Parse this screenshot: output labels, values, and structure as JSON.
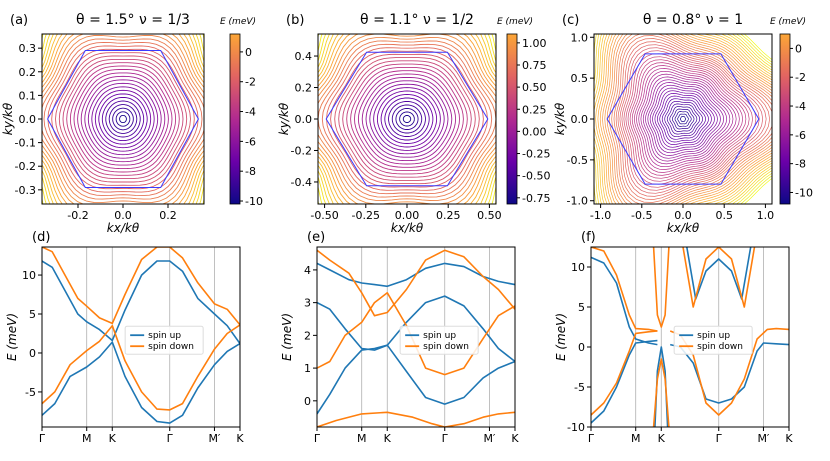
{
  "colors": {
    "spin_up": "#1f77b4",
    "spin_down": "#ff7f0e",
    "hexagon": "#3b3bff",
    "grid": "#b0b0b0",
    "cmap": [
      "#0d0887",
      "#6a00a8",
      "#b12a90",
      "#e16462",
      "#fca636",
      "#f0f921"
    ]
  },
  "chart_data": [
    {
      "id": "a",
      "type": "contour",
      "panel_label": "(a)",
      "title": "θ = 1.5° ν = 1/3",
      "xlabel": "kx/kθ",
      "ylabel": "ky/kθ",
      "xlim": [
        -0.36,
        0.36
      ],
      "ylim": [
        -0.36,
        0.36
      ],
      "xticks": [
        "-0.2",
        "0.0",
        "0.2"
      ],
      "xtick_values": [
        -0.2,
        0.0,
        0.2
      ],
      "yticks": [
        "-0.3",
        "-0.2",
        "-0.1",
        "0.0",
        "0.1",
        "0.2",
        "0.3"
      ],
      "ytick_values": [
        -0.3,
        -0.2,
        -0.1,
        0.0,
        0.1,
        0.2,
        0.3
      ],
      "hexagon_radius": 0.335,
      "colorbar": {
        "label": "E (meV)",
        "range": [
          -10.2,
          1.2
        ],
        "ticks": [
          "0",
          "-2",
          "-4",
          "-6",
          "-8",
          "-10"
        ],
        "tick_values": [
          0,
          -2,
          -4,
          -6,
          -8,
          -10
        ]
      }
    },
    {
      "id": "b",
      "type": "contour",
      "panel_label": "(b)",
      "title": "θ = 1.1° ν = 1/2",
      "xlabel": "kx/kθ",
      "ylabel": "ky/kθ",
      "xlim": [
        -0.54,
        0.54
      ],
      "ylim": [
        -0.54,
        0.54
      ],
      "xticks": [
        "-0.50",
        "-0.25",
        "0.00",
        "0.25",
        "0.50"
      ],
      "xtick_values": [
        -0.5,
        -0.25,
        0.0,
        0.25,
        0.5
      ],
      "yticks": [
        "-0.4",
        "-0.2",
        "0.0",
        "0.2",
        "0.4"
      ],
      "ytick_values": [
        -0.4,
        -0.2,
        0.0,
        0.2,
        0.4
      ],
      "hexagon_radius": 0.49,
      "colorbar": {
        "label": "E (meV)",
        "range": [
          -0.82,
          1.1
        ],
        "ticks": [
          "1.00",
          "0.75",
          "0.50",
          "0.25",
          "0.00",
          "-0.25",
          "-0.50",
          "-0.75"
        ],
        "tick_values": [
          1.0,
          0.75,
          0.5,
          0.25,
          0.0,
          -0.25,
          -0.5,
          -0.75
        ]
      }
    },
    {
      "id": "c",
      "type": "contour",
      "panel_label": "(c)",
      "title": "θ = 0.8° ν = 1",
      "xlabel": "kx/kθ",
      "ylabel": "ky/kθ",
      "xlim": [
        -1.08,
        1.08
      ],
      "ylim": [
        -1.04,
        1.04
      ],
      "xticks": [
        "-1.0",
        "-0.5",
        "0.0",
        "0.5",
        "1.0"
      ],
      "xtick_values": [
        -1.0,
        -0.5,
        0.0,
        0.5,
        1.0
      ],
      "yticks": [
        "-1.0",
        "-0.5",
        "0.0",
        "0.5",
        "1.0"
      ],
      "ytick_values": [
        -1.0,
        -0.5,
        0.0,
        0.5,
        1.0
      ],
      "hexagon_radius": 0.92,
      "colorbar": {
        "label": "E (meV)",
        "range": [
          -10.8,
          1.0
        ],
        "ticks": [
          "0",
          "-2",
          "-4",
          "-6",
          "-8",
          "-10"
        ],
        "tick_values": [
          0,
          -2,
          -4,
          -6,
          -8,
          -10
        ]
      }
    },
    {
      "id": "d",
      "type": "line",
      "panel_label": "(d)",
      "ylabel": "E (meV)",
      "kpath": [
        "Γ",
        "M",
        "K",
        "Γ",
        "M′",
        "K"
      ],
      "kpos": [
        0,
        0.35,
        0.55,
        1.0,
        1.35,
        1.55
      ],
      "ylim": [
        -9.5,
        13.6
      ],
      "yticks": [
        "-5",
        "0",
        "5",
        "10"
      ],
      "ytick_values": [
        -5,
        0,
        5,
        10
      ],
      "legend": {
        "position": "center-right"
      },
      "series": [
        {
          "name": "spin up",
          "color": "#1f77b4",
          "x": [
            0,
            0.08,
            0.18,
            0.28,
            0.35,
            0.45,
            0.55,
            0.65,
            0.78,
            0.9,
            1.0,
            1.1,
            1.22,
            1.35,
            1.45,
            1.55
          ],
          "y": [
            11.8,
            11.0,
            8.0,
            5.0,
            4.0,
            3.0,
            1.6,
            5.5,
            10.0,
            11.8,
            11.8,
            10.5,
            7.0,
            5.0,
            3.5,
            1.2
          ]
        },
        {
          "name": "spin up",
          "color": "#1f77b4",
          "x": [
            0,
            0.1,
            0.22,
            0.35,
            0.45,
            0.55,
            0.65,
            0.78,
            0.9,
            1.0,
            1.1,
            1.22,
            1.35,
            1.45,
            1.55
          ],
          "y": [
            -8.0,
            -6.5,
            -3.0,
            -1.8,
            -0.5,
            1.4,
            -3.0,
            -7.0,
            -8.8,
            -9.0,
            -8.0,
            -4.5,
            -1.5,
            0.2,
            1.2
          ]
        },
        {
          "name": "spin down",
          "color": "#ff7f0e",
          "x": [
            0,
            0.08,
            0.18,
            0.28,
            0.35,
            0.45,
            0.55,
            0.65,
            0.78,
            0.9,
            1.0,
            1.1,
            1.22,
            1.35,
            1.45,
            1.55
          ],
          "y": [
            13.6,
            13.0,
            10.0,
            7.0,
            6.0,
            4.5,
            3.8,
            7.5,
            12.0,
            13.6,
            13.6,
            12.2,
            9.0,
            6.3,
            5.6,
            3.6
          ]
        },
        {
          "name": "spin down",
          "color": "#ff7f0e",
          "x": [
            0,
            0.1,
            0.22,
            0.35,
            0.45,
            0.55,
            0.65,
            0.78,
            0.9,
            1.0,
            1.1,
            1.22,
            1.35,
            1.45,
            1.55
          ],
          "y": [
            -6.5,
            -5.0,
            -1.5,
            0.3,
            1.5,
            3.5,
            -1.0,
            -5.0,
            -7.2,
            -7.3,
            -6.5,
            -3.0,
            0.5,
            2.5,
            3.6
          ]
        }
      ]
    },
    {
      "id": "e",
      "type": "line",
      "panel_label": "(e)",
      "ylabel": "E (meV)",
      "kpath": [
        "Γ",
        "M",
        "K",
        "Γ",
        "M′",
        "K"
      ],
      "kpos": [
        0,
        0.35,
        0.55,
        1.0,
        1.35,
        1.55
      ],
      "ylim": [
        -0.8,
        4.7
      ],
      "yticks": [
        "0",
        "1",
        "2",
        "3",
        "4"
      ],
      "ytick_values": [
        0,
        1,
        2,
        3,
        4
      ],
      "legend": {
        "position": "center-right"
      },
      "series": [
        {
          "name": "spin up",
          "color": "#1f77b4",
          "x": [
            0,
            0.1,
            0.25,
            0.35,
            0.45,
            0.55,
            0.7,
            0.85,
            1.0,
            1.15,
            1.3,
            1.42,
            1.55
          ],
          "y": [
            4.2,
            4.0,
            3.7,
            3.6,
            3.55,
            3.5,
            3.7,
            4.05,
            4.2,
            4.1,
            3.8,
            3.65,
            3.55
          ]
        },
        {
          "name": "spin up",
          "color": "#1f77b4",
          "x": [
            0,
            0.1,
            0.22,
            0.35,
            0.45,
            0.55,
            0.7,
            0.85,
            1.0,
            1.15,
            1.3,
            1.42,
            1.55
          ],
          "y": [
            3.0,
            2.8,
            2.2,
            1.6,
            1.55,
            1.7,
            2.4,
            3.0,
            3.2,
            2.9,
            2.2,
            1.6,
            1.2
          ]
        },
        {
          "name": "spin up",
          "color": "#1f77b4",
          "x": [
            0,
            0.1,
            0.22,
            0.35,
            0.45,
            0.55,
            0.7,
            0.85,
            1.0,
            1.15,
            1.3,
            1.42,
            1.55
          ],
          "y": [
            -0.4,
            0.2,
            1.0,
            1.55,
            1.6,
            1.7,
            0.9,
            0.1,
            -0.1,
            0.1,
            0.7,
            1.0,
            1.2
          ]
        },
        {
          "name": "spin down",
          "color": "#ff7f0e",
          "x": [
            0,
            0.1,
            0.25,
            0.35,
            0.45,
            0.55,
            0.7,
            0.85,
            1.0,
            1.15,
            1.3,
            1.42,
            1.55
          ],
          "y": [
            4.6,
            4.3,
            3.9,
            3.3,
            2.6,
            2.7,
            3.4,
            4.3,
            4.6,
            4.4,
            3.8,
            3.4,
            2.8
          ]
        },
        {
          "name": "spin down",
          "color": "#ff7f0e",
          "x": [
            0,
            0.1,
            0.22,
            0.35,
            0.45,
            0.55,
            0.7,
            0.85,
            1.0,
            1.15,
            1.3,
            1.42,
            1.55
          ],
          "y": [
            1.0,
            1.2,
            2.0,
            2.4,
            3.0,
            3.3,
            2.3,
            1.0,
            0.8,
            1.0,
            1.9,
            2.6,
            2.9
          ]
        },
        {
          "name": "spin down",
          "color": "#ff7f0e",
          "x": [
            0,
            0.15,
            0.35,
            0.55,
            0.75,
            0.9,
            1.0,
            1.15,
            1.3,
            1.42,
            1.55
          ],
          "y": [
            -0.8,
            -0.6,
            -0.4,
            -0.35,
            -0.5,
            -0.7,
            -0.8,
            -0.7,
            -0.5,
            -0.4,
            -0.35
          ]
        }
      ]
    },
    {
      "id": "f",
      "type": "line",
      "panel_label": "(f)",
      "ylabel": "E (meV)",
      "kpath": [
        "Γ",
        "M",
        "K",
        "Γ",
        "M′",
        "K"
      ],
      "kpos": [
        0,
        0.35,
        0.55,
        1.0,
        1.35,
        1.55
      ],
      "ylim": [
        -10,
        12.5
      ],
      "yticks": [
        "-10",
        "-5",
        "0",
        "5",
        "10"
      ],
      "ytick_values": [
        -10,
        -5,
        0,
        5,
        10
      ],
      "legend": {
        "position": "center-right"
      },
      "series": [
        {
          "name": "spin up",
          "color": "#1f77b4",
          "x": [
            0,
            0.1,
            0.2,
            0.3,
            0.35,
            0.45,
            0.52
          ],
          "y": [
            11.2,
            10.5,
            8.0,
            2.5,
            1.0,
            0.5,
            0.3
          ]
        },
        {
          "name": "spin up",
          "color": "#1f77b4",
          "x": [
            0,
            0.1,
            0.2,
            0.3,
            0.35,
            0.45,
            0.52
          ],
          "y": [
            -9.5,
            -8.0,
            -5.0,
            -1.0,
            0.5,
            0.7,
            0.8
          ]
        },
        {
          "name": "spin up",
          "color": "#1f77b4",
          "x": [
            0.75,
            0.82,
            0.9,
            1.0,
            1.1,
            1.18,
            1.25
          ],
          "y": [
            12.5,
            6.0,
            9.5,
            11.0,
            9.5,
            6.0,
            12.5
          ]
        },
        {
          "name": "spin up",
          "color": "#1f77b4",
          "x": [
            0.62,
            0.7,
            0.8,
            0.9,
            1.0,
            1.1,
            1.2,
            1.3,
            1.35,
            1.45,
            1.55
          ],
          "y": [
            0.3,
            0.0,
            -2.0,
            -6.5,
            -7.0,
            -6.5,
            -5.0,
            -0.5,
            0.5,
            0.4,
            0.3
          ]
        },
        {
          "name": "spin up",
          "color": "#1f77b4",
          "x": [
            0.5,
            0.52,
            0.55,
            0.58,
            0.6
          ],
          "y": [
            -10,
            -3.0,
            0.0,
            -3.0,
            -10
          ]
        },
        {
          "name": "spin down",
          "color": "#ff7f0e",
          "x": [
            0,
            0.1,
            0.2,
            0.3,
            0.35,
            0.45,
            0.52
          ],
          "y": [
            12.5,
            12.0,
            9.0,
            4.0,
            2.3,
            2.2,
            2.0
          ]
        },
        {
          "name": "spin down",
          "color": "#ff7f0e",
          "x": [
            0,
            0.1,
            0.2,
            0.3,
            0.35,
            0.45,
            0.52
          ],
          "y": [
            -8.5,
            -7.0,
            -4.5,
            -0.5,
            1.7,
            1.9,
            2.0
          ]
        },
        {
          "name": "spin down",
          "color": "#ff7f0e",
          "x": [
            0.72,
            0.8,
            0.9,
            1.0,
            1.1,
            1.2,
            1.28
          ],
          "y": [
            12.5,
            5.0,
            11.0,
            12.5,
            11.0,
            5.0,
            12.5
          ]
        },
        {
          "name": "spin down",
          "color": "#ff7f0e",
          "x": [
            0.62,
            0.7,
            0.8,
            0.9,
            1.0,
            1.1,
            1.2,
            1.3,
            1.38,
            1.45,
            1.55
          ],
          "y": [
            2.0,
            1.5,
            -1.0,
            -7.0,
            -8.5,
            -7.0,
            -4.0,
            1.0,
            2.2,
            2.3,
            2.2
          ]
        },
        {
          "name": "spin down",
          "color": "#ff7f0e",
          "x": [
            0.49,
            0.52,
            0.55,
            0.58,
            0.61
          ],
          "y": [
            12.5,
            4.0,
            2.5,
            4.0,
            12.5
          ]
        },
        {
          "name": "spin down",
          "color": "#ff7f0e",
          "x": [
            0.49,
            0.52,
            0.55,
            0.58,
            0.61
          ],
          "y": [
            -10,
            -4.0,
            -1.5,
            -4.0,
            -10
          ]
        }
      ]
    }
  ]
}
